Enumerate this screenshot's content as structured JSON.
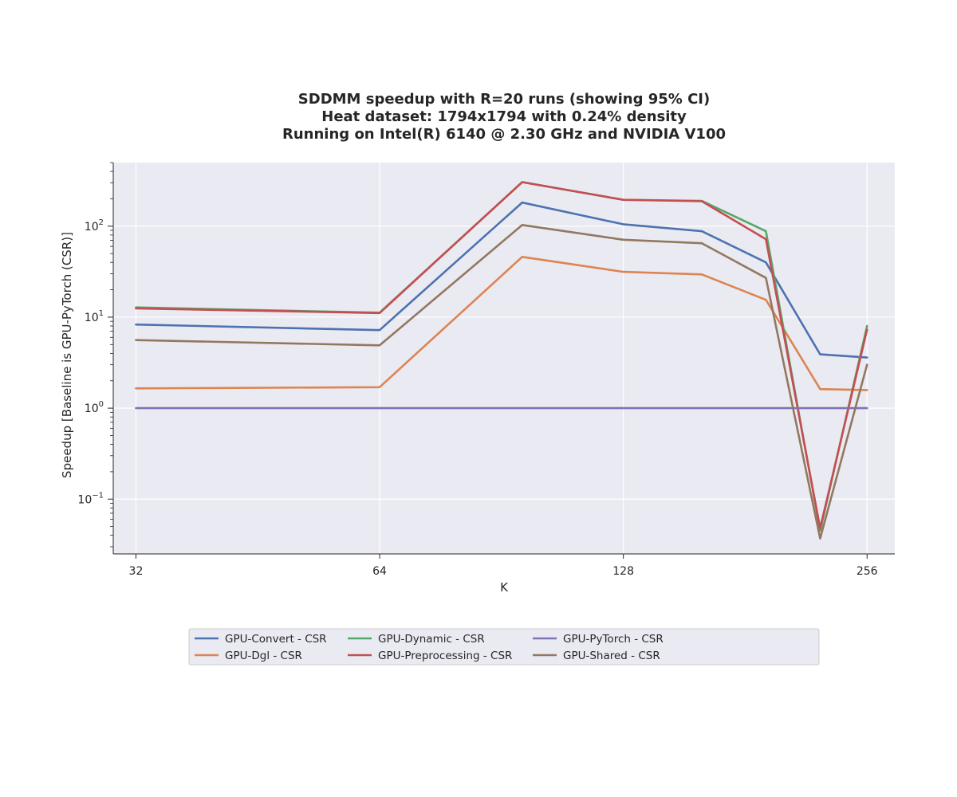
{
  "chart_data": {
    "type": "line",
    "title_lines": [
      "SDDMM speedup with R=20 runs (showing 95% CI)",
      "Heat dataset: 1794x1794 with 0.24% density",
      "Running on Intel(R) 6140 @ 2.30 GHz and NVIDIA V100"
    ],
    "xlabel": "K",
    "ylabel": "Speedup [Baseline is GPU-PyTorch (CSR)]",
    "xscale": "log2",
    "yscale": "log10",
    "xlim": [
      30,
      277
    ],
    "ylim": [
      0.025,
      500
    ],
    "x_ticks": [
      32,
      64,
      128,
      256
    ],
    "x_tick_labels": [
      "32",
      "64",
      "128",
      "256"
    ],
    "y_ticks": [
      0.1,
      1,
      10,
      100
    ],
    "y_tick_labels": [
      {
        "base": "10",
        "exp": "−1"
      },
      {
        "base": "10",
        "exp": "0"
      },
      {
        "base": "10",
        "exp": "1"
      },
      {
        "base": "10",
        "exp": "2"
      }
    ],
    "grid": true,
    "background": "#eaeaf2",
    "legend_position": "bottom-center",
    "x": [
      32,
      64,
      96,
      128,
      160,
      192,
      224,
      256
    ],
    "series": [
      {
        "name": "GPU-Convert - CSR",
        "color": "#4c72b0",
        "values": [
          8.3,
          7.2,
          182,
          105,
          88,
          40,
          3.9,
          3.6
        ]
      },
      {
        "name": "GPU-Dgl - CSR",
        "color": "#dd8452",
        "values": [
          1.65,
          1.7,
          46,
          31.5,
          29.5,
          15.5,
          1.62,
          1.58
        ]
      },
      {
        "name": "GPU-Dynamic - CSR",
        "color": "#55a868",
        "values": [
          12.8,
          11.2,
          305,
          195,
          190,
          88,
          0.045,
          8.0
        ]
      },
      {
        "name": "GPU-Preprocessing - CSR",
        "color": "#c44e52",
        "values": [
          12.5,
          11.1,
          305,
          195,
          188,
          72,
          0.048,
          7.3
        ]
      },
      {
        "name": "GPU-PyTorch - CSR",
        "color": "#8172b3",
        "values": [
          1.0,
          1.0,
          1.0,
          1.0,
          1.0,
          1.0,
          1.0,
          1.0
        ]
      },
      {
        "name": "GPU-Shared - CSR",
        "color": "#937860",
        "values": [
          5.6,
          4.9,
          103,
          71,
          65,
          27,
          0.037,
          3.0
        ]
      }
    ]
  }
}
